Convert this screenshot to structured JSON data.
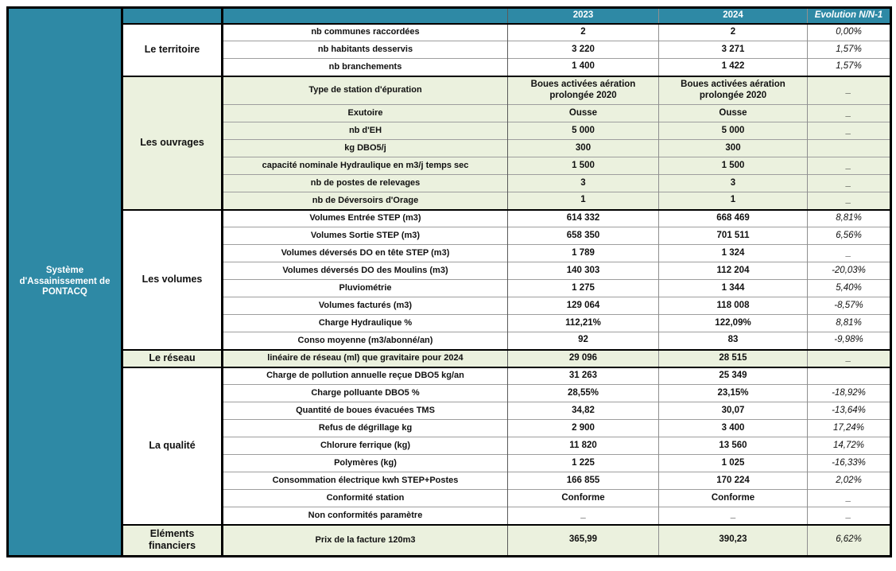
{
  "table": {
    "title": "Système d'Assainissement de PONTACQ",
    "header": {
      "corner": "",
      "label_col": "",
      "y2023": "2023",
      "y2024": "2024",
      "evolution": "Evolution N/N-1"
    },
    "colors": {
      "header_bg": "#2E89A5",
      "header_text": "#FFFFFF",
      "green_band": "#EBF1DE",
      "title_bg": "#D9EEE8",
      "grid_line": "#9E9E9E",
      "section_border": "#000000"
    },
    "sections": [
      {
        "label": "Le territoire",
        "band": "white",
        "rows": [
          {
            "label": "nb communes raccordées",
            "y2023": "2",
            "y2024": "2",
            "evo": "0,00%"
          },
          {
            "label": "nb habitants desservis",
            "y2023": "3 220",
            "y2024": "3 271",
            "evo": "1,57%"
          },
          {
            "label": "nb branchements",
            "y2023": "1 400",
            "y2024": "1 422",
            "evo": "1,57%"
          }
        ]
      },
      {
        "label": "Les ouvrages",
        "band": "green",
        "rows": [
          {
            "label": "Type de station d'épuration",
            "y2023": "Boues activées aération prolongée 2020",
            "y2024": "Boues activées aération prolongée 2020",
            "evo": "_",
            "tall": true
          },
          {
            "label": "Exutoire",
            "y2023": "Ousse",
            "y2024": "Ousse",
            "evo": "_"
          },
          {
            "label": "nb d'EH",
            "y2023": "5 000",
            "y2024": "5 000",
            "evo": "_"
          },
          {
            "label": "kg DBO5/j",
            "y2023": "300",
            "y2024": "300",
            "evo": ""
          },
          {
            "label": "capacité nominale Hydraulique en m3/j temps sec",
            "y2023": "1 500",
            "y2024": "1 500",
            "evo": "_"
          },
          {
            "label": "nb de postes de relevages",
            "y2023": "3",
            "y2024": "3",
            "evo": "_"
          },
          {
            "label": "nb de Déversoirs d'Orage",
            "y2023": "1",
            "y2024": "1",
            "evo": "_"
          }
        ]
      },
      {
        "label": "Les volumes",
        "band": "white",
        "rows": [
          {
            "label": "Volumes Entrée STEP (m3)",
            "y2023": "614 332",
            "y2024": "668 469",
            "evo": "8,81%"
          },
          {
            "label": "Volumes Sortie STEP (m3)",
            "y2023": "658 350",
            "y2024": "701 511",
            "evo": "6,56%"
          },
          {
            "label": "Volumes déversés DO en tête STEP (m3)",
            "y2023": "1 789",
            "y2024": "1 324",
            "evo": "_"
          },
          {
            "label": "Volumes déversés DO des Moulins (m3)",
            "y2023": "140 303",
            "y2024": "112 204",
            "evo": "-20,03%"
          },
          {
            "label": "Pluviométrie",
            "y2023": "1 275",
            "y2024": "1 344",
            "evo": "5,40%"
          },
          {
            "label": "Volumes facturés (m3)",
            "y2023": "129 064",
            "y2024": "118 008",
            "evo": "-8,57%"
          },
          {
            "label": "Charge Hydraulique %",
            "y2023": "112,21%",
            "y2024": "122,09%",
            "evo": "8,81%"
          },
          {
            "label": "Conso moyenne (m3/abonné/an)",
            "y2023": "92",
            "y2024": "83",
            "evo": "-9,98%"
          }
        ]
      },
      {
        "label": "Le réseau",
        "band": "green",
        "rows": [
          {
            "label": "linéaire de réseau (ml) que gravitaire pour 2024",
            "y2023": "29 096",
            "y2024": "28 515",
            "evo": "_"
          }
        ]
      },
      {
        "label": "La qualité",
        "band": "white",
        "rows": [
          {
            "label": "Charge de pollution annuelle reçue DBO5 kg/an",
            "y2023": "31 263",
            "y2024": "25 349",
            "evo": ""
          },
          {
            "label": "Charge polluante DBO5 %",
            "y2023": "28,55%",
            "y2024": "23,15%",
            "evo": "-18,92%"
          },
          {
            "label": "Quantité de boues évacuées TMS",
            "y2023": "34,82",
            "y2024": "30,07",
            "evo": "-13,64%"
          },
          {
            "label": "Refus de dégrillage kg",
            "y2023": "2 900",
            "y2024": "3 400",
            "evo": "17,24%"
          },
          {
            "label": "Chlorure ferrique (kg)",
            "y2023": "11 820",
            "y2024": "13 560",
            "evo": "14,72%"
          },
          {
            "label": "Polymères (kg)",
            "y2023": "1 225",
            "y2024": "1 025",
            "evo": "-16,33%"
          },
          {
            "label": "Consommation électrique kwh STEP+Postes",
            "y2023": "166 855",
            "y2024": "170 224",
            "evo": "2,02%"
          },
          {
            "label": "Conformité station",
            "y2023": "Conforme",
            "y2024": "Conforme",
            "evo": "_"
          },
          {
            "label": "Non conformités paramètre",
            "y2023": "_",
            "y2024": "_",
            "evo": "_"
          }
        ]
      },
      {
        "label": "Eléments financiers",
        "band": "green",
        "rows": [
          {
            "label": "Prix de la facture 120m3",
            "y2023": "365,99",
            "y2024": "390,23",
            "evo": "6,62%",
            "xtall": true
          }
        ]
      }
    ]
  }
}
